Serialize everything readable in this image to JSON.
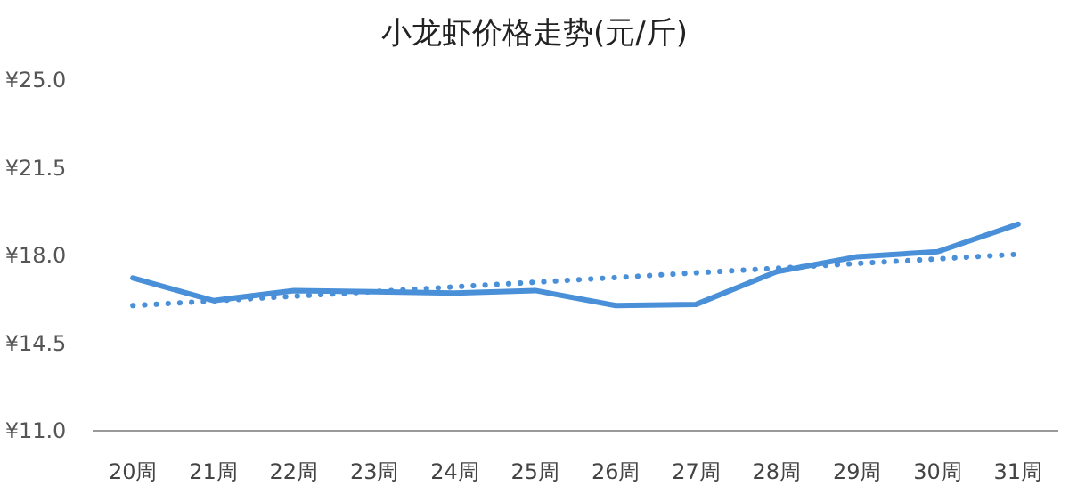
{
  "chart_data": {
    "type": "line",
    "title": "小龙虾价格走势(元/斤)",
    "categories": [
      "20周",
      "21周",
      "22周",
      "23周",
      "24周",
      "25周",
      "26周",
      "27周",
      "28周",
      "29周",
      "30周",
      "31周"
    ],
    "series": [
      {
        "color": "#4a90d9",
        "line_style": "solid",
        "values": [
          17.1,
          16.2,
          16.6,
          16.55,
          16.5,
          16.6,
          16.0,
          16.05,
          17.35,
          17.95,
          18.15,
          19.25
        ]
      },
      {
        "type": "line",
        "color": "#4a90d9",
        "line_style": "dotted",
        "x": [
          "20周",
          "31周"
        ],
        "values": [
          16.0,
          18.05
        ]
      }
    ],
    "ylim": [
      11,
      25
    ],
    "yticks": [
      {
        "value": 11,
        "label": "¥11.0"
      },
      {
        "value": 14.5,
        "label": "¥14.5"
      },
      {
        "value": 18,
        "label": "¥18.0"
      },
      {
        "value": 21.5,
        "label": "¥21.5"
      },
      {
        "value": 25,
        "label": "¥25.0"
      }
    ],
    "marker": "none",
    "grid": false
  }
}
